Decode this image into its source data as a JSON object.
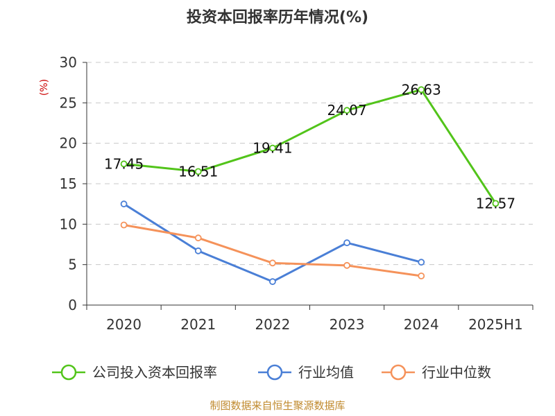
{
  "chart_data": {
    "type": "line",
    "title": "投资本回报率历年情况(%)",
    "ylabel": "(%)",
    "categories": [
      "2020",
      "2021",
      "2022",
      "2023",
      "2024",
      "2025H1"
    ],
    "yticks": [
      "0",
      "5",
      "10",
      "15",
      "20",
      "25",
      "30"
    ],
    "ylim": [
      0,
      30
    ],
    "grid": true,
    "legend_position": "bottom",
    "series": [
      {
        "name": "公司投入资本回报率",
        "color": "#52c41a",
        "values": [
          17.45,
          16.51,
          19.41,
          24.07,
          26.63,
          12.57
        ],
        "labels": [
          "17.45",
          "16.51",
          "19.41",
          "24.07",
          "26.63",
          "12.57"
        ]
      },
      {
        "name": "行业均值",
        "color": "#4a7fd6",
        "values": [
          12.5,
          6.7,
          2.9,
          7.7,
          5.3,
          null
        ]
      },
      {
        "name": "行业中位数",
        "color": "#f5925a",
        "values": [
          9.9,
          8.3,
          5.2,
          4.9,
          3.6,
          null
        ]
      }
    ],
    "source": "制图数据来自恒生聚源数据库"
  }
}
